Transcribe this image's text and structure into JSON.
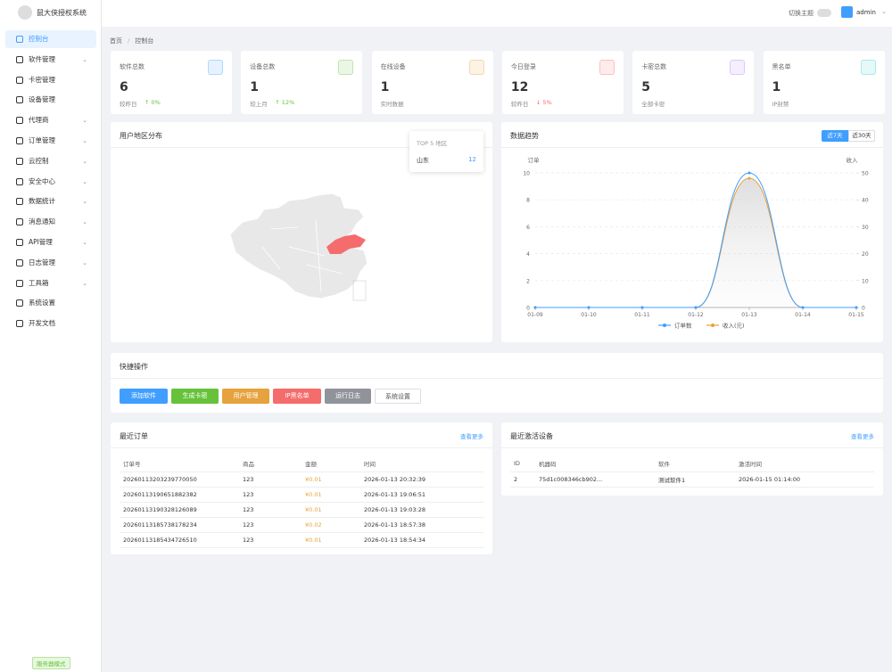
{
  "sidebar": {
    "logo": "鼠大侠授权系统",
    "menu": [
      {
        "label": "控制台",
        "active": true
      },
      {
        "label": "软件管理",
        "expandable": true
      },
      {
        "label": "卡密管理"
      },
      {
        "label": "设备管理"
      },
      {
        "label": "代理商",
        "expandable": true
      },
      {
        "label": "订单管理",
        "expandable": true
      },
      {
        "label": "云控制",
        "expandable": true
      },
      {
        "label": "安全中心",
        "expandable": true
      },
      {
        "label": "数据统计",
        "expandable": true
      },
      {
        "label": "消息通知",
        "expandable": true
      },
      {
        "label": "API管理",
        "expandable": true
      },
      {
        "label": "日志管理",
        "expandable": true
      },
      {
        "label": "工具箱",
        "expandable": true
      },
      {
        "label": "系统设置"
      },
      {
        "label": "开发文档"
      }
    ],
    "footer_badge": "服务器模式"
  },
  "header": {
    "theme_toggle": "切换主题",
    "user": "admin"
  },
  "breadcrumb": [
    "首页",
    "控制台"
  ],
  "stats": [
    {
      "label": "软件总数",
      "value": 6,
      "note": "较昨日",
      "trend": "↑ 0%",
      "color": "#409eff"
    },
    {
      "label": "设备总数",
      "value": 1,
      "note": "较上月",
      "trend": "↑ 12%",
      "color": "#67c23a"
    },
    {
      "label": "在线设备",
      "value": 1,
      "note": "实时数据",
      "color": "#e6a23c"
    },
    {
      "label": "今日登录",
      "value": 12,
      "note": "较昨日",
      "trend": "↓ 5%",
      "color": "#f56c6c"
    },
    {
      "label": "卡密总数",
      "value": 5,
      "note": "全部卡密",
      "color": "#b37feb"
    },
    {
      "label": "黑名单",
      "value": 1,
      "note": "IP封禁",
      "color": "#36cfc9"
    }
  ],
  "map_card": {
    "title": "用户地区分布",
    "tooltip_title": "TOP 5 地区",
    "regions": [
      {
        "name": "山东",
        "value": 12
      }
    ]
  },
  "trend_chart": {
    "type": "line",
    "title": "数据趋势",
    "range_buttons": [
      "近7天",
      "近30天"
    ],
    "y_title": "订单",
    "y2_title": "收入",
    "x": [
      "01-09",
      "01-10",
      "01-11",
      "01-12",
      "01-13",
      "01-14",
      "01-15"
    ],
    "series": [
      {
        "name": "订单数",
        "color": "#409eff",
        "values": [
          0,
          0,
          0,
          0,
          10,
          0,
          0
        ]
      },
      {
        "name": "收入(元)",
        "color": "#e6a23c",
        "axis": "y2",
        "values": [
          0,
          0,
          0,
          0,
          48,
          0,
          0
        ]
      }
    ],
    "ylim": [
      0,
      10
    ],
    "yticks": [
      0,
      2,
      4,
      6,
      8,
      10
    ],
    "y2lim": [
      0,
      50
    ],
    "y2ticks": [
      0,
      10,
      20,
      30,
      40,
      50
    ],
    "grid": true
  },
  "quick_actions": {
    "title": "快捷操作",
    "buttons": [
      {
        "label": "添加软件",
        "color": "#409eff"
      },
      {
        "label": "生成卡密",
        "color": "#67c23a"
      },
      {
        "label": "用户管理",
        "color": "#e6a23c"
      },
      {
        "label": "IP黑名单",
        "color": "#f56c6c"
      },
      {
        "label": "运行日志",
        "color": "#909399"
      },
      {
        "label": "系统设置",
        "color": "#ffffff"
      }
    ]
  },
  "orders": {
    "title": "最近订单",
    "more": "查看更多",
    "columns": [
      "订单号",
      "商品",
      "金额",
      "时间"
    ],
    "rows": [
      [
        "20260113203239770050",
        "123",
        "¥0.01",
        "2026-01-13 20:32:39"
      ],
      [
        "20260113190651882382",
        "123",
        "¥0.01",
        "2026-01-13 19:06:51"
      ],
      [
        "20260113190328126089",
        "123",
        "¥0.01",
        "2026-01-13 19:03:28"
      ],
      [
        "20260113185738178234",
        "123",
        "¥0.02",
        "2026-01-13 18:57:38"
      ],
      [
        "20260113185434726510",
        "123",
        "¥0.01",
        "2026-01-13 18:54:34"
      ]
    ]
  },
  "devices": {
    "title": "最近激活设备",
    "more": "查看更多",
    "columns": [
      "ID",
      "机器码",
      "软件",
      "激活时间"
    ],
    "rows": [
      [
        "2",
        "75d1c008346cb902...",
        "测试软件1",
        "2026-01-15 01:14:00"
      ]
    ]
  }
}
